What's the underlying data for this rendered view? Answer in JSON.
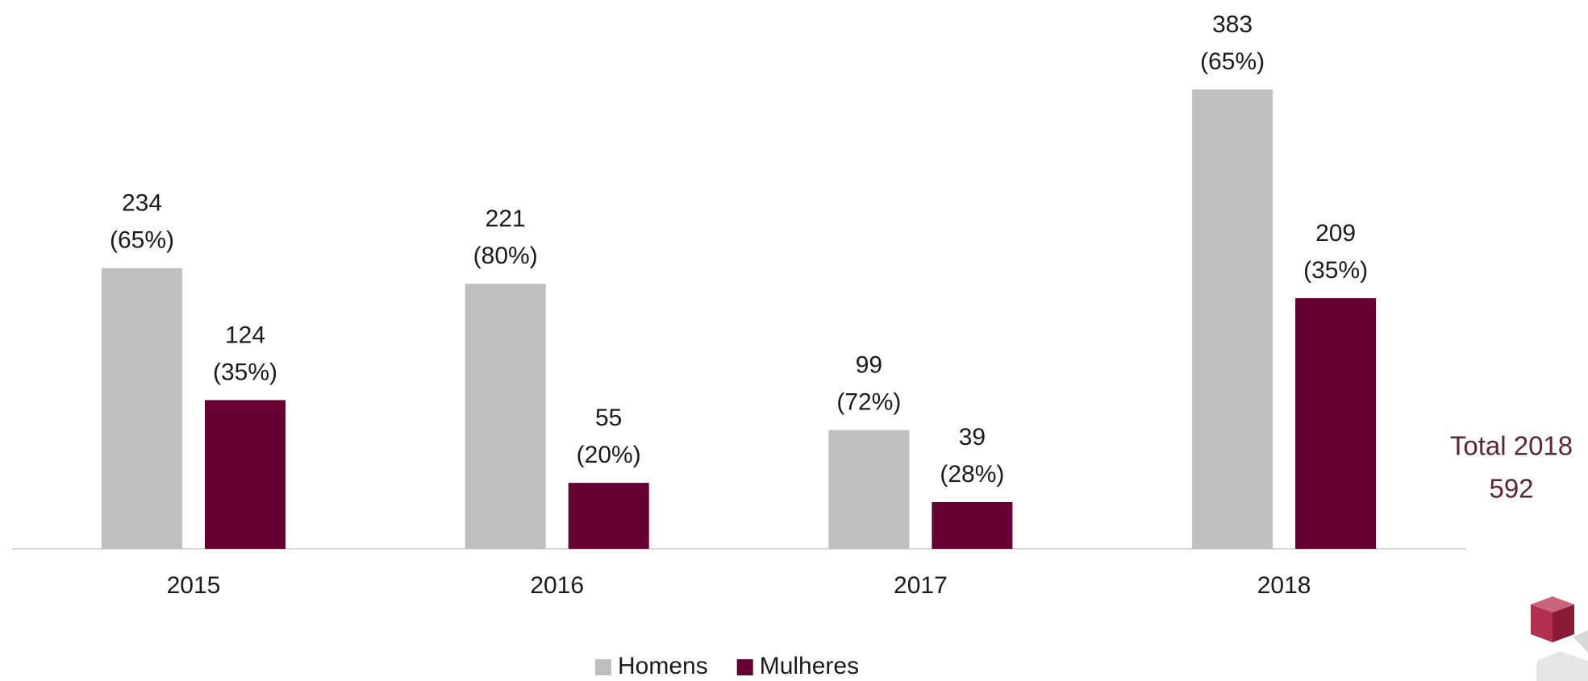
{
  "chart_data": {
    "type": "bar",
    "categories": [
      "2015",
      "2016",
      "2017",
      "2018"
    ],
    "series": [
      {
        "name": "Homens",
        "color": "#bfbfbf",
        "values": [
          234,
          221,
          99,
          383
        ],
        "shares": [
          65,
          80,
          72,
          65
        ],
        "share_labels": [
          "(65%)",
          "(80%)",
          "(72%)",
          "(65%)"
        ]
      },
      {
        "name": "Mulheres",
        "color": "#660033",
        "values": [
          124,
          55,
          39,
          209
        ],
        "shares": [
          35,
          20,
          28,
          35
        ],
        "share_labels": [
          "(35%)",
          "(20%)",
          "(28%)",
          "(35%)"
        ]
      }
    ],
    "annotation": {
      "label": "Total 2018",
      "value": 592
    },
    "legend": "bottom"
  }
}
